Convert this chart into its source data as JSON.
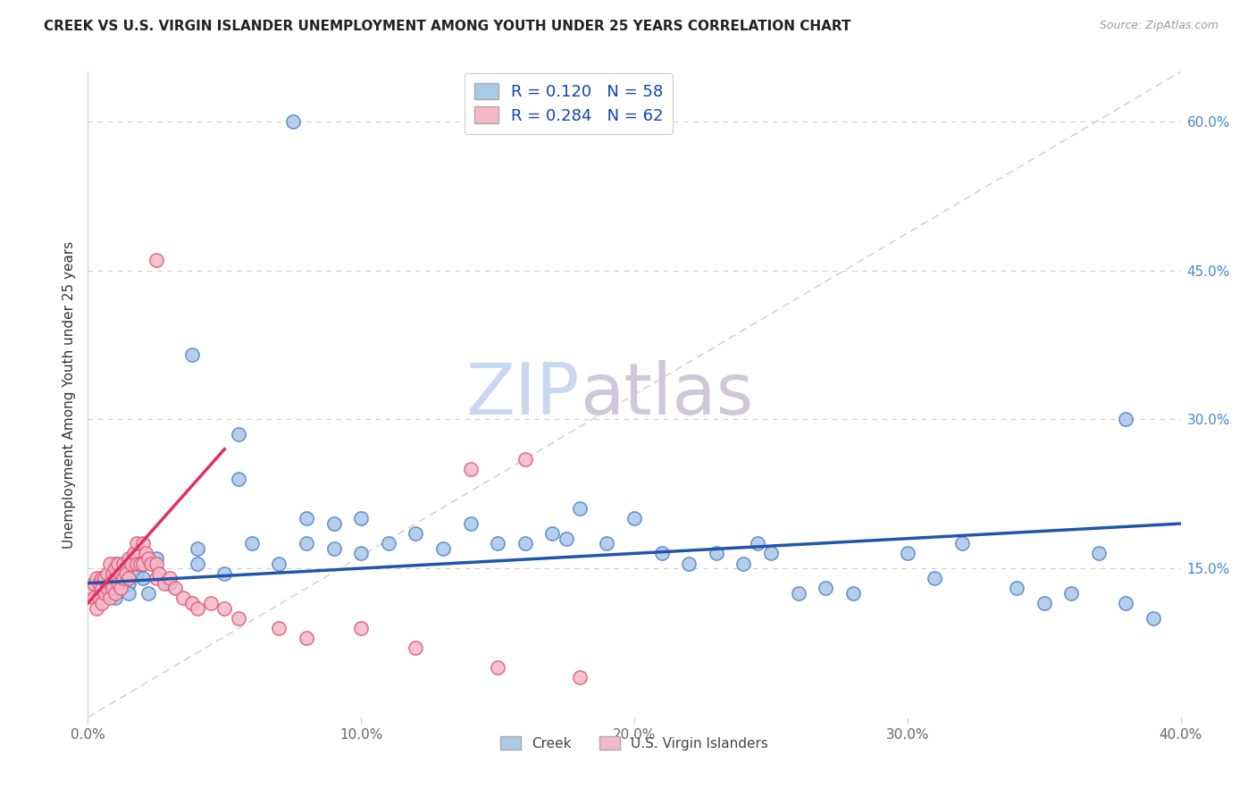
{
  "title": "CREEK VS U.S. VIRGIN ISLANDER UNEMPLOYMENT AMONG YOUTH UNDER 25 YEARS CORRELATION CHART",
  "source": "Source: ZipAtlas.com",
  "ylabel": "Unemployment Among Youth under 25 years",
  "xlim": [
    0.0,
    0.4
  ],
  "ylim": [
    0.0,
    0.65
  ],
  "xticks": [
    0.0,
    0.1,
    0.2,
    0.3,
    0.4
  ],
  "xticklabels": [
    "0.0%",
    "10.0%",
    "20.0%",
    "30.0%",
    "40.0%"
  ],
  "yticks_right": [
    0.15,
    0.3,
    0.45,
    0.6
  ],
  "yticklabels_right": [
    "15.0%",
    "30.0%",
    "45.0%",
    "60.0%"
  ],
  "creek_color": "#aac8e8",
  "creek_edge_color": "#5588cc",
  "virgin_color": "#f5b8c8",
  "virgin_edge_color": "#e06080",
  "creek_line_color": "#2255aa",
  "virgin_line_color": "#e03060",
  "ref_line_color": "#cccccc",
  "legend_creek_R": "0.120",
  "legend_creek_N": "58",
  "legend_virgin_R": "0.284",
  "legend_virgin_N": "62",
  "watermark_zip": "ZIP",
  "watermark_atlas": "atlas",
  "creek_scatter_x": [
    0.005,
    0.007,
    0.01,
    0.01,
    0.012,
    0.015,
    0.015,
    0.018,
    0.02,
    0.02,
    0.022,
    0.025,
    0.03,
    0.04,
    0.04,
    0.05,
    0.06,
    0.07,
    0.08,
    0.08,
    0.09,
    0.09,
    0.1,
    0.1,
    0.11,
    0.12,
    0.13,
    0.14,
    0.15,
    0.16,
    0.17,
    0.175,
    0.18,
    0.19,
    0.2,
    0.21,
    0.22,
    0.23,
    0.24,
    0.245,
    0.25,
    0.26,
    0.27,
    0.28,
    0.3,
    0.31,
    0.32,
    0.34,
    0.35,
    0.36,
    0.37,
    0.38,
    0.038,
    0.055,
    0.055,
    0.075,
    0.38,
    0.39
  ],
  "creek_scatter_y": [
    0.14,
    0.13,
    0.12,
    0.155,
    0.13,
    0.135,
    0.125,
    0.145,
    0.14,
    0.155,
    0.125,
    0.16,
    0.135,
    0.17,
    0.155,
    0.145,
    0.175,
    0.155,
    0.2,
    0.175,
    0.17,
    0.195,
    0.165,
    0.2,
    0.175,
    0.185,
    0.17,
    0.195,
    0.175,
    0.175,
    0.185,
    0.18,
    0.21,
    0.175,
    0.2,
    0.165,
    0.155,
    0.165,
    0.155,
    0.175,
    0.165,
    0.125,
    0.13,
    0.125,
    0.165,
    0.14,
    0.175,
    0.13,
    0.115,
    0.125,
    0.165,
    0.115,
    0.365,
    0.285,
    0.24,
    0.6,
    0.3,
    0.1
  ],
  "virgin_scatter_x": [
    0.001,
    0.002,
    0.002,
    0.003,
    0.003,
    0.004,
    0.004,
    0.005,
    0.005,
    0.005,
    0.006,
    0.006,
    0.007,
    0.007,
    0.008,
    0.008,
    0.008,
    0.009,
    0.009,
    0.01,
    0.01,
    0.01,
    0.011,
    0.011,
    0.012,
    0.012,
    0.013,
    0.013,
    0.014,
    0.015,
    0.015,
    0.016,
    0.017,
    0.018,
    0.018,
    0.019,
    0.02,
    0.02,
    0.021,
    0.022,
    0.023,
    0.025,
    0.025,
    0.026,
    0.028,
    0.03,
    0.032,
    0.035,
    0.038,
    0.04,
    0.045,
    0.05,
    0.055,
    0.07,
    0.08,
    0.1,
    0.12,
    0.15,
    0.18,
    0.025,
    0.14,
    0.16
  ],
  "virgin_scatter_y": [
    0.13,
    0.12,
    0.135,
    0.11,
    0.14,
    0.12,
    0.135,
    0.13,
    0.115,
    0.14,
    0.125,
    0.14,
    0.13,
    0.145,
    0.12,
    0.135,
    0.155,
    0.13,
    0.145,
    0.14,
    0.125,
    0.15,
    0.135,
    0.155,
    0.145,
    0.13,
    0.14,
    0.155,
    0.145,
    0.14,
    0.16,
    0.155,
    0.165,
    0.155,
    0.175,
    0.155,
    0.155,
    0.175,
    0.165,
    0.16,
    0.155,
    0.14,
    0.155,
    0.145,
    0.135,
    0.14,
    0.13,
    0.12,
    0.115,
    0.11,
    0.115,
    0.11,
    0.1,
    0.09,
    0.08,
    0.09,
    0.07,
    0.05,
    0.04,
    0.46,
    0.25,
    0.26
  ],
  "creek_trend_x0": 0.0,
  "creek_trend_x1": 0.4,
  "creek_trend_y0": 0.135,
  "creek_trend_y1": 0.195,
  "virgin_trend_x0": 0.0,
  "virgin_trend_x1": 0.05,
  "virgin_trend_y0": 0.115,
  "virgin_trend_y1": 0.27
}
